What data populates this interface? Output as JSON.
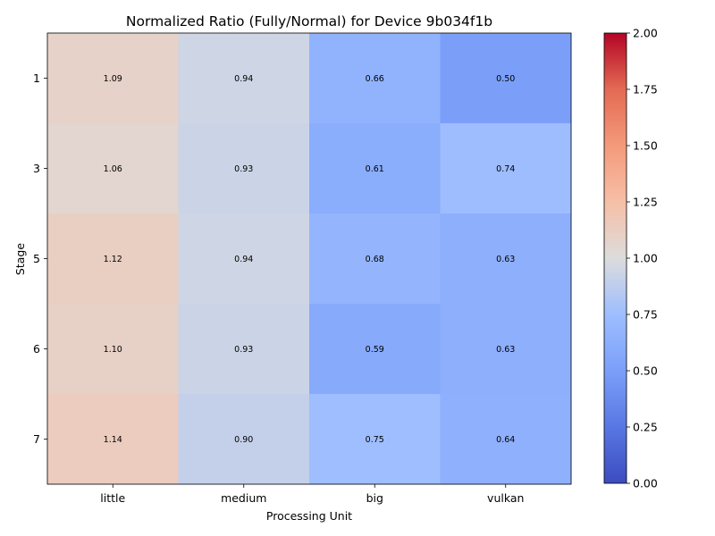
{
  "chart_data": {
    "type": "heatmap",
    "title": "Normalized Ratio (Fully/Normal) for Device 9b034f1b",
    "xlabel": "Processing Unit",
    "ylabel": "Stage",
    "x_categories": [
      "little",
      "medium",
      "big",
      "vulkan"
    ],
    "y_categories": [
      "1",
      "3",
      "5",
      "6",
      "7"
    ],
    "values": [
      [
        1.09,
        0.94,
        0.66,
        0.5
      ],
      [
        1.06,
        0.93,
        0.61,
        0.74
      ],
      [
        1.12,
        0.94,
        0.68,
        0.63
      ],
      [
        1.1,
        0.93,
        0.59,
        0.63
      ],
      [
        1.14,
        0.9,
        0.75,
        0.64
      ]
    ],
    "cell_labels": [
      [
        "1.09",
        "0.94",
        "0.66",
        "0.50"
      ],
      [
        "1.06",
        "0.93",
        "0.61",
        "0.74"
      ],
      [
        "1.12",
        "0.94",
        "0.68",
        "0.63"
      ],
      [
        "1.10",
        "0.93",
        "0.59",
        "0.63"
      ],
      [
        "1.14",
        "0.90",
        "0.75",
        "0.64"
      ]
    ],
    "colormap": "coolwarm",
    "vmin": 0.0,
    "vmax": 2.0,
    "colorbar_ticks": [
      0.0,
      0.25,
      0.5,
      0.75,
      1.0,
      1.25,
      1.5,
      1.75,
      2.0
    ],
    "colorbar_tick_labels": [
      "0.00",
      "0.25",
      "0.50",
      "0.75",
      "1.00",
      "1.25",
      "1.50",
      "1.75",
      "2.00"
    ],
    "grid": false
  }
}
